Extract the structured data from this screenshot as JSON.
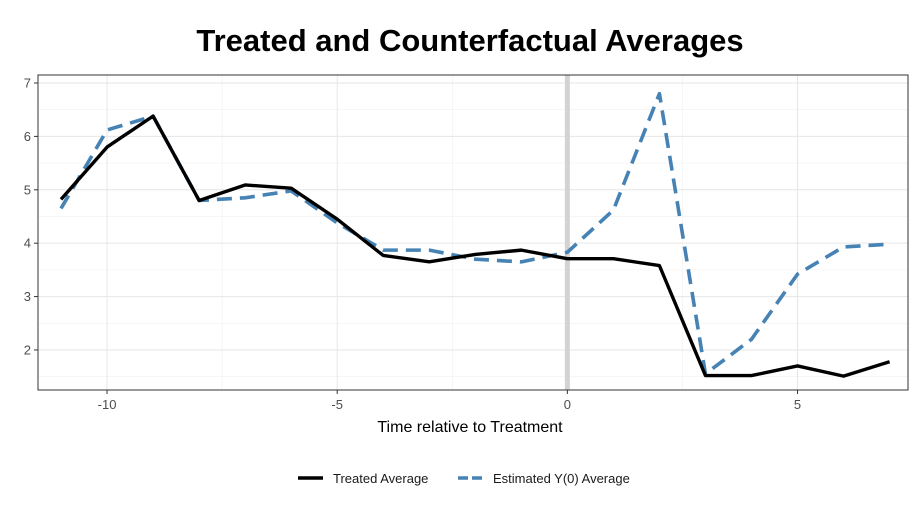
{
  "chart_data": {
    "type": "line",
    "title": "Treated and Counterfactual Averages",
    "xlabel": "Time relative to Treatment",
    "ylabel": "",
    "xlim": [
      -11.5,
      7.4
    ],
    "ylim": [
      1.25,
      7.15
    ],
    "x_ticks": [
      -10,
      -5,
      0,
      5
    ],
    "y_ticks": [
      2,
      3,
      4,
      5,
      6,
      7
    ],
    "grid": true,
    "legend_position": "bottom",
    "treatment_time": 0,
    "x": [
      -11,
      -10,
      -9,
      -8,
      -7,
      -6,
      -5,
      -4,
      -3,
      -2,
      -1,
      0,
      1,
      2,
      3,
      4,
      5,
      6,
      7
    ],
    "series": [
      {
        "name": "Treated Average",
        "style": "solid",
        "color": "#000000",
        "values": [
          4.82,
          5.8,
          6.38,
          4.8,
          5.09,
          5.03,
          4.45,
          3.77,
          3.65,
          3.79,
          3.87,
          3.71,
          3.71,
          3.58,
          1.52,
          1.52,
          1.7,
          1.51,
          1.78
        ]
      },
      {
        "name": "Estimated Y(0) Average",
        "style": "dashed",
        "color": "#4682b4",
        "values": [
          4.65,
          6.12,
          6.38,
          4.8,
          4.85,
          4.98,
          4.38,
          3.87,
          3.87,
          3.7,
          3.65,
          3.83,
          4.62,
          6.8,
          1.55,
          2.2,
          3.42,
          3.93,
          3.98
        ]
      }
    ]
  }
}
